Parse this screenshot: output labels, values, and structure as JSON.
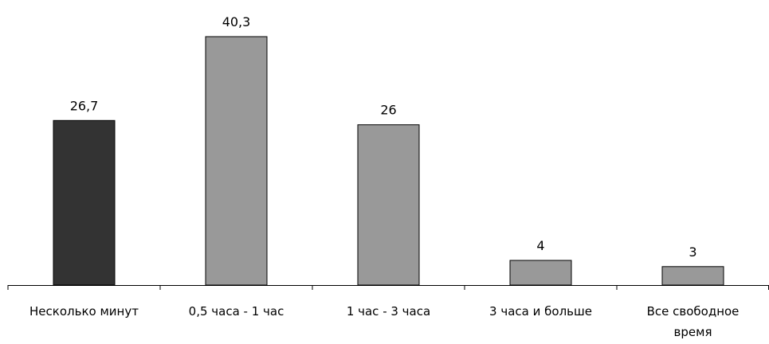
{
  "chart_data": {
    "type": "bar",
    "categories": [
      [
        "Несколько минут"
      ],
      [
        "0,5 часа - 1 час"
      ],
      [
        "1 час - 3 часа"
      ],
      [
        "3 часа и больше"
      ],
      [
        "Все свободное",
        "время"
      ]
    ],
    "values": [
      26.7,
      40.3,
      26,
      4,
      3
    ],
    "value_labels": [
      "26,7",
      "40,3",
      "26",
      "4",
      "3"
    ],
    "title": "",
    "xlabel": "",
    "ylabel": "",
    "ylim": [
      0,
      40.3
    ],
    "grid": false,
    "legend": "none",
    "colors": {
      "highlight_bar": "#333333",
      "bar": "#999999",
      "bar_stroke": "#000000",
      "axis": "#000000"
    }
  }
}
